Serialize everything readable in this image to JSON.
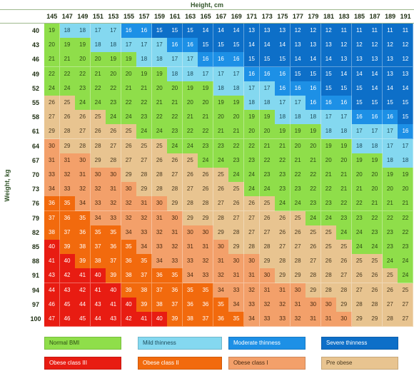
{
  "axis": {
    "x_label": "Height, cm",
    "y_label": "Weight, kg"
  },
  "heights": [
    145,
    147,
    149,
    151,
    153,
    155,
    157,
    159,
    161,
    163,
    165,
    167,
    169,
    171,
    173,
    175,
    177,
    179,
    181,
    183,
    185,
    187,
    189,
    191
  ],
  "weights": [
    40,
    43,
    46,
    49,
    52,
    55,
    58,
    61,
    64,
    67,
    70,
    73,
    76,
    79,
    82,
    85,
    88,
    91,
    94,
    97,
    100
  ],
  "bmi": [
    [
      19,
      18,
      18,
      17,
      17,
      16,
      16,
      15,
      15,
      15,
      14,
      14,
      14,
      13,
      13,
      13,
      12,
      12,
      12,
      11,
      11,
      11,
      11,
      11
    ],
    [
      20,
      19,
      19,
      18,
      18,
      17,
      17,
      17,
      16,
      16,
      15,
      15,
      15,
      14,
      14,
      14,
      13,
      13,
      13,
      12,
      12,
      12,
      12,
      12
    ],
    [
      21,
      21,
      20,
      20,
      19,
      19,
      18,
      18,
      17,
      17,
      16,
      16,
      16,
      15,
      15,
      15,
      14,
      14,
      14,
      13,
      13,
      13,
      13,
      12
    ],
    [
      22,
      22,
      22,
      21,
      20,
      20,
      19,
      19,
      18,
      18,
      17,
      17,
      17,
      16,
      16,
      16,
      15,
      15,
      15,
      14,
      14,
      14,
      13,
      13
    ],
    [
      24,
      24,
      23,
      22,
      22,
      21,
      21,
      20,
      20,
      19,
      19,
      18,
      18,
      17,
      17,
      16,
      16,
      16,
      15,
      15,
      15,
      14,
      14,
      14
    ],
    [
      26,
      25,
      24,
      24,
      23,
      22,
      22,
      21,
      21,
      20,
      20,
      19,
      19,
      18,
      18,
      17,
      17,
      16,
      16,
      16,
      15,
      15,
      15,
      15
    ],
    [
      27,
      26,
      26,
      25,
      24,
      24,
      23,
      22,
      22,
      21,
      21,
      20,
      20,
      19,
      19,
      18,
      18,
      18,
      17,
      17,
      16,
      16,
      16,
      15
    ],
    [
      29,
      28,
      27,
      26,
      26,
      25,
      24,
      24,
      23,
      22,
      22,
      21,
      21,
      20,
      20,
      19,
      19,
      19,
      18,
      18,
      17,
      17,
      17,
      16
    ],
    [
      30,
      29,
      28,
      28,
      27,
      26,
      25,
      25,
      24,
      24,
      23,
      23,
      22,
      22,
      21,
      21,
      20,
      20,
      19,
      19,
      18,
      18,
      17,
      17
    ],
    [
      31,
      31,
      30,
      29,
      28,
      27,
      27,
      26,
      26,
      25,
      24,
      24,
      23,
      23,
      22,
      22,
      21,
      21,
      20,
      20,
      19,
      19,
      18,
      18
    ],
    [
      33,
      32,
      31,
      30,
      30,
      29,
      28,
      28,
      27,
      26,
      26,
      25,
      24,
      24,
      23,
      23,
      22,
      22,
      21,
      21,
      20,
      20,
      19,
      19
    ],
    [
      34,
      33,
      32,
      32,
      31,
      30,
      29,
      28,
      28,
      27,
      26,
      26,
      25,
      24,
      24,
      23,
      23,
      22,
      22,
      21,
      21,
      20,
      20,
      20
    ],
    [
      36,
      35,
      34,
      33,
      32,
      32,
      31,
      30,
      29,
      28,
      28,
      27,
      26,
      26,
      25,
      24,
      24,
      23,
      23,
      22,
      22,
      21,
      21,
      21
    ],
    [
      37,
      36,
      35,
      34,
      33,
      32,
      32,
      31,
      30,
      29,
      29,
      28,
      27,
      27,
      26,
      26,
      25,
      24,
      24,
      23,
      23,
      22,
      22,
      22
    ],
    [
      38,
      37,
      36,
      35,
      35,
      34,
      33,
      32,
      31,
      30,
      30,
      29,
      28,
      27,
      27,
      26,
      26,
      25,
      25,
      24,
      24,
      23,
      23,
      22
    ],
    [
      40,
      39,
      38,
      37,
      36,
      35,
      34,
      33,
      32,
      31,
      31,
      30,
      29,
      28,
      28,
      27,
      27,
      26,
      25,
      25,
      24,
      24,
      23,
      23
    ],
    [
      41,
      40,
      39,
      38,
      37,
      36,
      35,
      34,
      33,
      33,
      32,
      31,
      30,
      30,
      29,
      28,
      28,
      27,
      26,
      26,
      25,
      25,
      24,
      24
    ],
    [
      43,
      42,
      41,
      40,
      39,
      38,
      37,
      36,
      35,
      34,
      33,
      32,
      31,
      31,
      30,
      29,
      29,
      28,
      28,
      27,
      26,
      26,
      25,
      24
    ],
    [
      44,
      43,
      42,
      41,
      40,
      39,
      38,
      37,
      36,
      35,
      35,
      34,
      33,
      32,
      31,
      31,
      30,
      29,
      28,
      28,
      27,
      26,
      26,
      25
    ],
    [
      46,
      45,
      44,
      43,
      41,
      40,
      39,
      38,
      37,
      36,
      36,
      35,
      34,
      33,
      32,
      32,
      31,
      30,
      30,
      29,
      28,
      28,
      27,
      27
    ],
    [
      47,
      46,
      45,
      44,
      43,
      42,
      41,
      40,
      39,
      38,
      37,
      36,
      35,
      34,
      33,
      33,
      32,
      31,
      31,
      30,
      29,
      29,
      28,
      27
    ]
  ],
  "categories": [
    {
      "label": "Normal BMI",
      "color": "#8fde4a",
      "text": "#2b4a14"
    },
    {
      "label": "Mild thinness",
      "color": "#84d8f0",
      "text": "#1b4a5a"
    },
    {
      "label": "Moderate thinness",
      "color": "#1d90e6",
      "text": "#ffffff"
    },
    {
      "label": "Severe thinness",
      "color": "#0d6fc8",
      "text": "#ffffff"
    },
    {
      "label": "Obese class III",
      "color": "#e81c12",
      "text": "#ffffff"
    },
    {
      "label": "Obese class II",
      "color": "#f26a0d",
      "text": "#ffffff"
    },
    {
      "label": "Obese class I",
      "color": "#f3a06a",
      "text": "#4a2a10"
    },
    {
      "label": "Pre obese",
      "color": "#e8c490",
      "text": "#4a3a20"
    }
  ]
}
